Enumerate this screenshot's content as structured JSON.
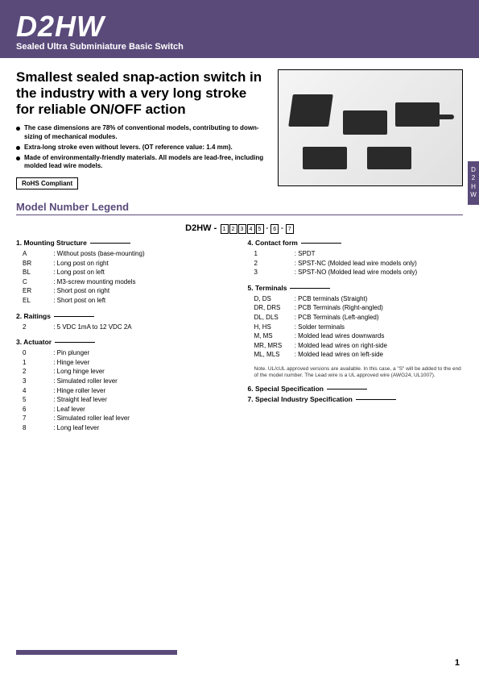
{
  "header": {
    "code": "D2HW",
    "subtitle": "Sealed Ultra Subminiature Basic Switch"
  },
  "side_tab": [
    "D",
    "2",
    "H",
    "W"
  ],
  "headline": "Smallest sealed snap-action switch in the industry with a very long stroke for reliable ON/OFF action",
  "bullets": [
    "The case dimensions are 78% of conventional models, contributing to down-sizing of mechanical modules.",
    "Extra-long stroke even without levers. (OT reference value: 1.4 mm).",
    "Made of environmentally-friendly materials. All models are lead-free, including molded lead wire models."
  ],
  "rohs": "RoHS Compliant",
  "section": "Model Number Legend",
  "legend_prefix": "D2HW -",
  "legend_boxes": [
    "1",
    "2",
    "3",
    "4",
    "5",
    "6",
    "7"
  ],
  "left_groups": [
    {
      "title": "1. Mounting Structure",
      "items": [
        {
          "c": "A",
          "t": ": Without posts (base-mounting)"
        },
        {
          "c": "BR",
          "t": ": Long post on right"
        },
        {
          "c": "BL",
          "t": ": Long post on left"
        },
        {
          "c": "C",
          "t": ": M3-screw mounting models"
        },
        {
          "c": "ER",
          "t": ": Short post on right"
        },
        {
          "c": "EL",
          "t": ": Short post on left"
        }
      ]
    },
    {
      "title": "2. Raitings",
      "items": [
        {
          "c": "2",
          "t": ": 5 VDC 1mA to 12 VDC 2A"
        }
      ]
    },
    {
      "title": "3. Actuator",
      "items": [
        {
          "c": "0",
          "t": ": Pin plunger"
        },
        {
          "c": "1",
          "t": ": Hinge lever"
        },
        {
          "c": "2",
          "t": ": Long hinge lever"
        },
        {
          "c": "3",
          "t": ": Simulated roller lever"
        },
        {
          "c": "4",
          "t": ": Hinge roller lever"
        },
        {
          "c": "5",
          "t": ": Straight leaf lever"
        },
        {
          "c": "6",
          "t": ": Leaf lever"
        },
        {
          "c": "7",
          "t": ": Simulated roller leaf lever"
        },
        {
          "c": "8",
          "t": ": Long leaf lever"
        }
      ]
    }
  ],
  "right_groups": [
    {
      "title": "4. Contact form",
      "items": [
        {
          "c": "1",
          "t": ": SPDT"
        },
        {
          "c": "2",
          "t": ": SPST-NC (Molded lead wire models only)"
        },
        {
          "c": "3",
          "t": ": SPST-NO (Molded lead wire models only)"
        }
      ]
    },
    {
      "title": "5. Terminals",
      "items": [
        {
          "c": "D, DS",
          "t": ": PCB terminals (Straight)"
        },
        {
          "c": "DR, DRS",
          "t": ": PCB Terminals (Right-angled)"
        },
        {
          "c": "DL, DLS",
          "t": ": PCB Terminals (Left-angled)"
        },
        {
          "c": "H, HS",
          "t": ": Solder terminals"
        },
        {
          "c": "M, MS",
          "t": ": Molded lead wires downwards"
        },
        {
          "c": "MR, MRS",
          "t": ": Molded lead wires on right-side"
        },
        {
          "c": "ML, MLS",
          "t": ": Molded lead wires on left-side"
        }
      ],
      "note": "Note. UL/cUL approved versions are available.\nIn this case, a \"S\" will be added to the end of the model number.\nThe Lead wire is a UL approved wire (AWG24, UL1007)."
    },
    {
      "title": "6. Special Specification",
      "items": []
    },
    {
      "title": "7. Special Industry Specification",
      "items": []
    }
  ],
  "page": "1",
  "colors": {
    "brand": "#5a4a7a"
  }
}
